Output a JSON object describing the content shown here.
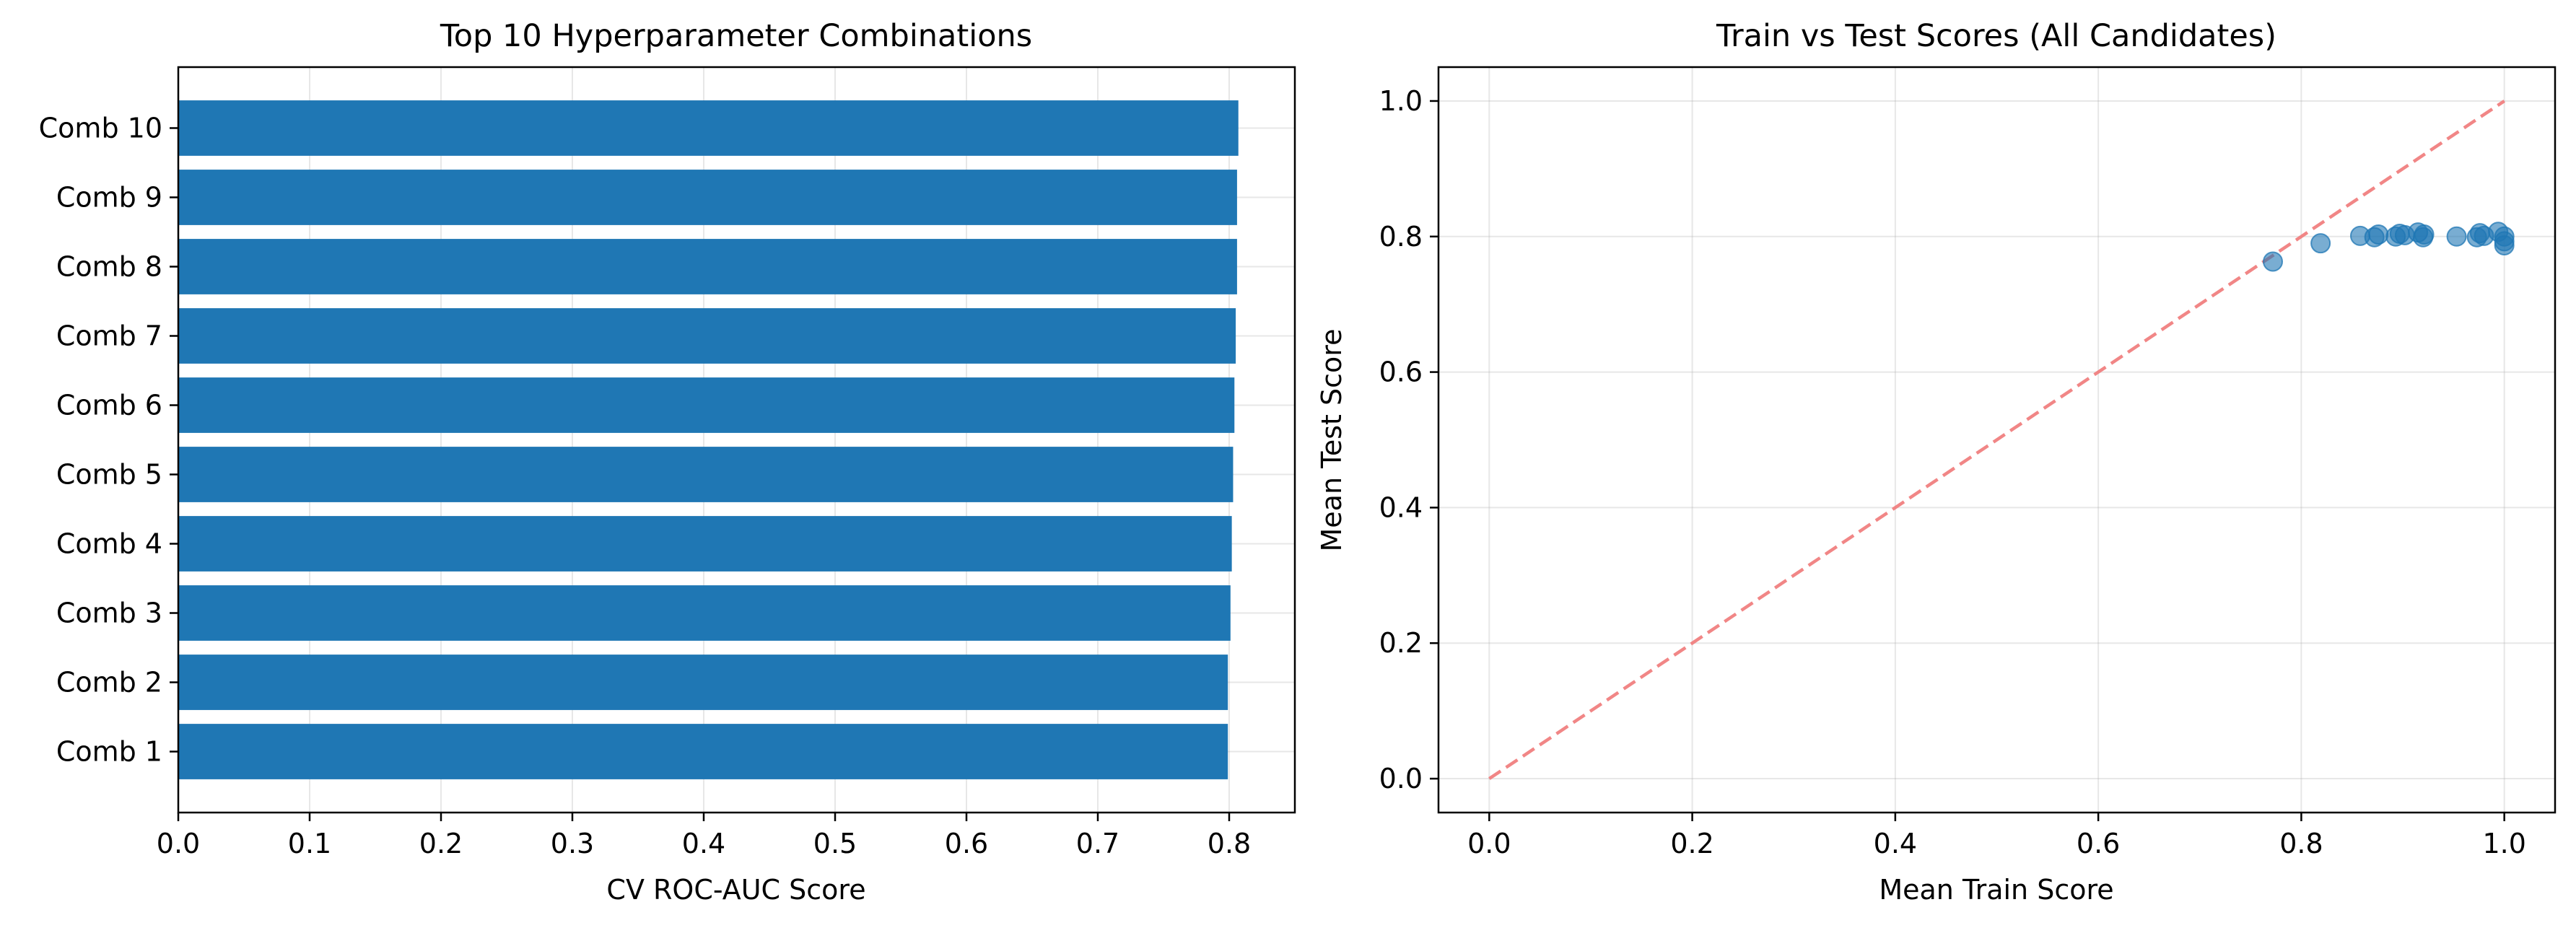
{
  "chart_data": [
    {
      "type": "bar",
      "orientation": "horizontal",
      "title": "Top 10 Hyperparameter Combinations",
      "xlabel": "CV ROC-AUC Score",
      "ylabel": "",
      "categories": [
        "Comb 1",
        "Comb 2",
        "Comb 3",
        "Comb 4",
        "Comb 5",
        "Comb 6",
        "Comb 7",
        "Comb 8",
        "Comb 9",
        "Comb 10"
      ],
      "values": [
        0.799,
        0.799,
        0.801,
        0.802,
        0.803,
        0.804,
        0.805,
        0.806,
        0.806,
        0.807
      ],
      "xlim": [
        0.0,
        0.85
      ],
      "xticks": [
        0.0,
        0.1,
        0.2,
        0.3,
        0.4,
        0.5,
        0.6,
        0.7,
        0.8
      ],
      "xtick_labels": [
        "0.0",
        "0.1",
        "0.2",
        "0.3",
        "0.4",
        "0.5",
        "0.6",
        "0.7",
        "0.8"
      ],
      "grid": true,
      "color": "#1f77b4"
    },
    {
      "type": "scatter",
      "title": "Train vs Test Scores (All Candidates)",
      "xlabel": "Mean Train Score",
      "ylabel": "Mean Test Score",
      "xlim": [
        -0.05,
        1.05
      ],
      "ylim": [
        -0.05,
        1.05
      ],
      "xticks": [
        0.0,
        0.2,
        0.4,
        0.6,
        0.8,
        1.0
      ],
      "xtick_labels": [
        "0.0",
        "0.2",
        "0.4",
        "0.6",
        "0.8",
        "1.0"
      ],
      "yticks": [
        0.0,
        0.2,
        0.4,
        0.6,
        0.8,
        1.0
      ],
      "ytick_labels": [
        "0.0",
        "0.2",
        "0.4",
        "0.6",
        "0.8",
        "1.0"
      ],
      "grid": true,
      "point_color": "#1f77b4",
      "points": [
        {
          "x": 0.772,
          "y": 0.763
        },
        {
          "x": 0.819,
          "y": 0.79
        },
        {
          "x": 0.858,
          "y": 0.801
        },
        {
          "x": 0.872,
          "y": 0.799
        },
        {
          "x": 0.876,
          "y": 0.803
        },
        {
          "x": 0.893,
          "y": 0.8
        },
        {
          "x": 0.897,
          "y": 0.804
        },
        {
          "x": 0.902,
          "y": 0.802
        },
        {
          "x": 0.915,
          "y": 0.806
        },
        {
          "x": 0.92,
          "y": 0.799
        },
        {
          "x": 0.921,
          "y": 0.803
        },
        {
          "x": 0.953,
          "y": 0.8
        },
        {
          "x": 0.973,
          "y": 0.799
        },
        {
          "x": 0.976,
          "y": 0.805
        },
        {
          "x": 0.98,
          "y": 0.801
        },
        {
          "x": 0.994,
          "y": 0.807
        },
        {
          "x": 1.0,
          "y": 0.8
        },
        {
          "x": 1.0,
          "y": 0.793
        },
        {
          "x": 1.0,
          "y": 0.787
        }
      ],
      "reference_line": {
        "from": [
          0.0,
          0.0
        ],
        "to": [
          1.0,
          1.0
        ],
        "style": "dashed",
        "color": "#f08080"
      }
    }
  ]
}
